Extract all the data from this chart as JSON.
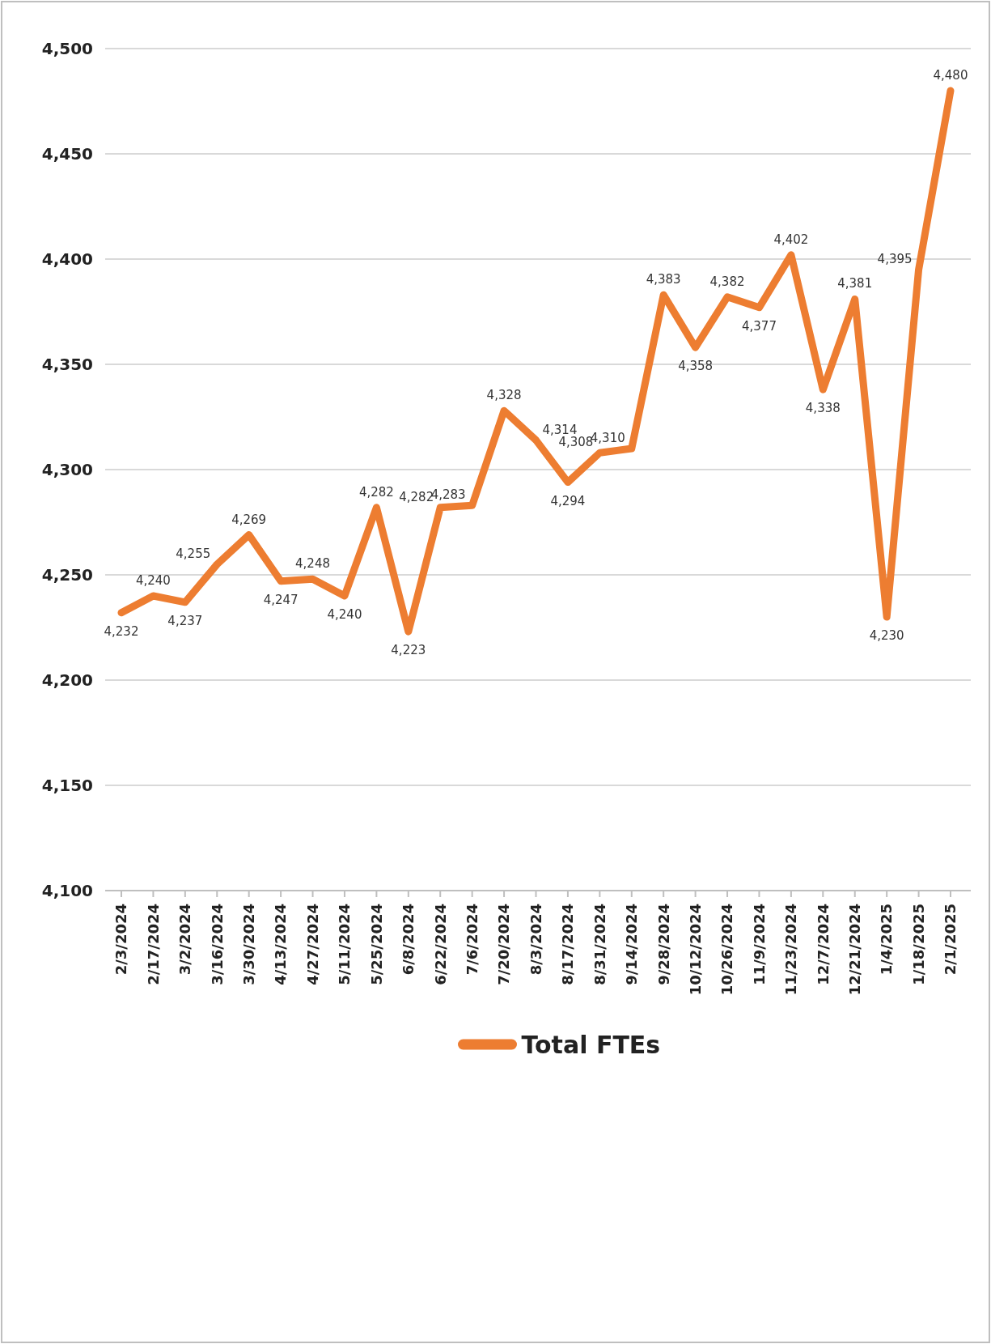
{
  "chart_data": {
    "type": "line",
    "categories": [
      "2/3/2024",
      "2/17/2024",
      "3/2/2024",
      "3/16/2024",
      "3/30/2024",
      "4/13/2024",
      "4/27/2024",
      "5/11/2024",
      "5/25/2024",
      "6/8/2024",
      "6/22/2024",
      "7/6/2024",
      "7/20/2024",
      "8/3/2024",
      "8/17/2024",
      "8/31/2024",
      "9/14/2024",
      "9/28/2024",
      "10/12/2024",
      "10/26/2024",
      "11/9/2024",
      "11/23/2024",
      "12/7/2024",
      "12/21/2024",
      "1/4/2025",
      "1/18/2025",
      "2/1/2025"
    ],
    "series": [
      {
        "name": "Total FTEs",
        "color": "#ed7d31",
        "value_labels": [
          "4,232",
          "4,240",
          "4,237",
          "4,255",
          "4,269",
          "4,247",
          "4,248",
          "4,240",
          "4,282",
          "4,223",
          "4,282",
          "4,283",
          "4,328",
          "4,314",
          "4,294",
          "4,308",
          "4,310",
          "4,383",
          "4,358",
          "4,382",
          "4,377",
          "4,402",
          "4,338",
          "4,381",
          "4,230",
          "4,395",
          "4,480"
        ],
        "values": [
          4232,
          4240,
          4237,
          4255,
          4269,
          4247,
          4248,
          4240,
          4282,
          4223,
          4282,
          4283,
          4328,
          4314,
          4294,
          4308,
          4310,
          4383,
          4358,
          4382,
          4377,
          4402,
          4338,
          4381,
          4230,
          4395,
          4480
        ]
      }
    ],
    "ylim": [
      4100,
      4500
    ],
    "yticks": [
      {
        "value": 4100,
        "label": "4,100"
      },
      {
        "value": 4150,
        "label": "4,150"
      },
      {
        "value": 4200,
        "label": "4,200"
      },
      {
        "value": 4250,
        "label": "4,250"
      },
      {
        "value": 4300,
        "label": "4,300"
      },
      {
        "value": 4350,
        "label": "4,350"
      },
      {
        "value": 4400,
        "label": "4,400"
      },
      {
        "value": 4450,
        "label": "4,450"
      },
      {
        "value": 4500,
        "label": "4,500"
      }
    ],
    "grid": "y",
    "legend": "bottom",
    "marker": "none",
    "line_style": "solid"
  }
}
